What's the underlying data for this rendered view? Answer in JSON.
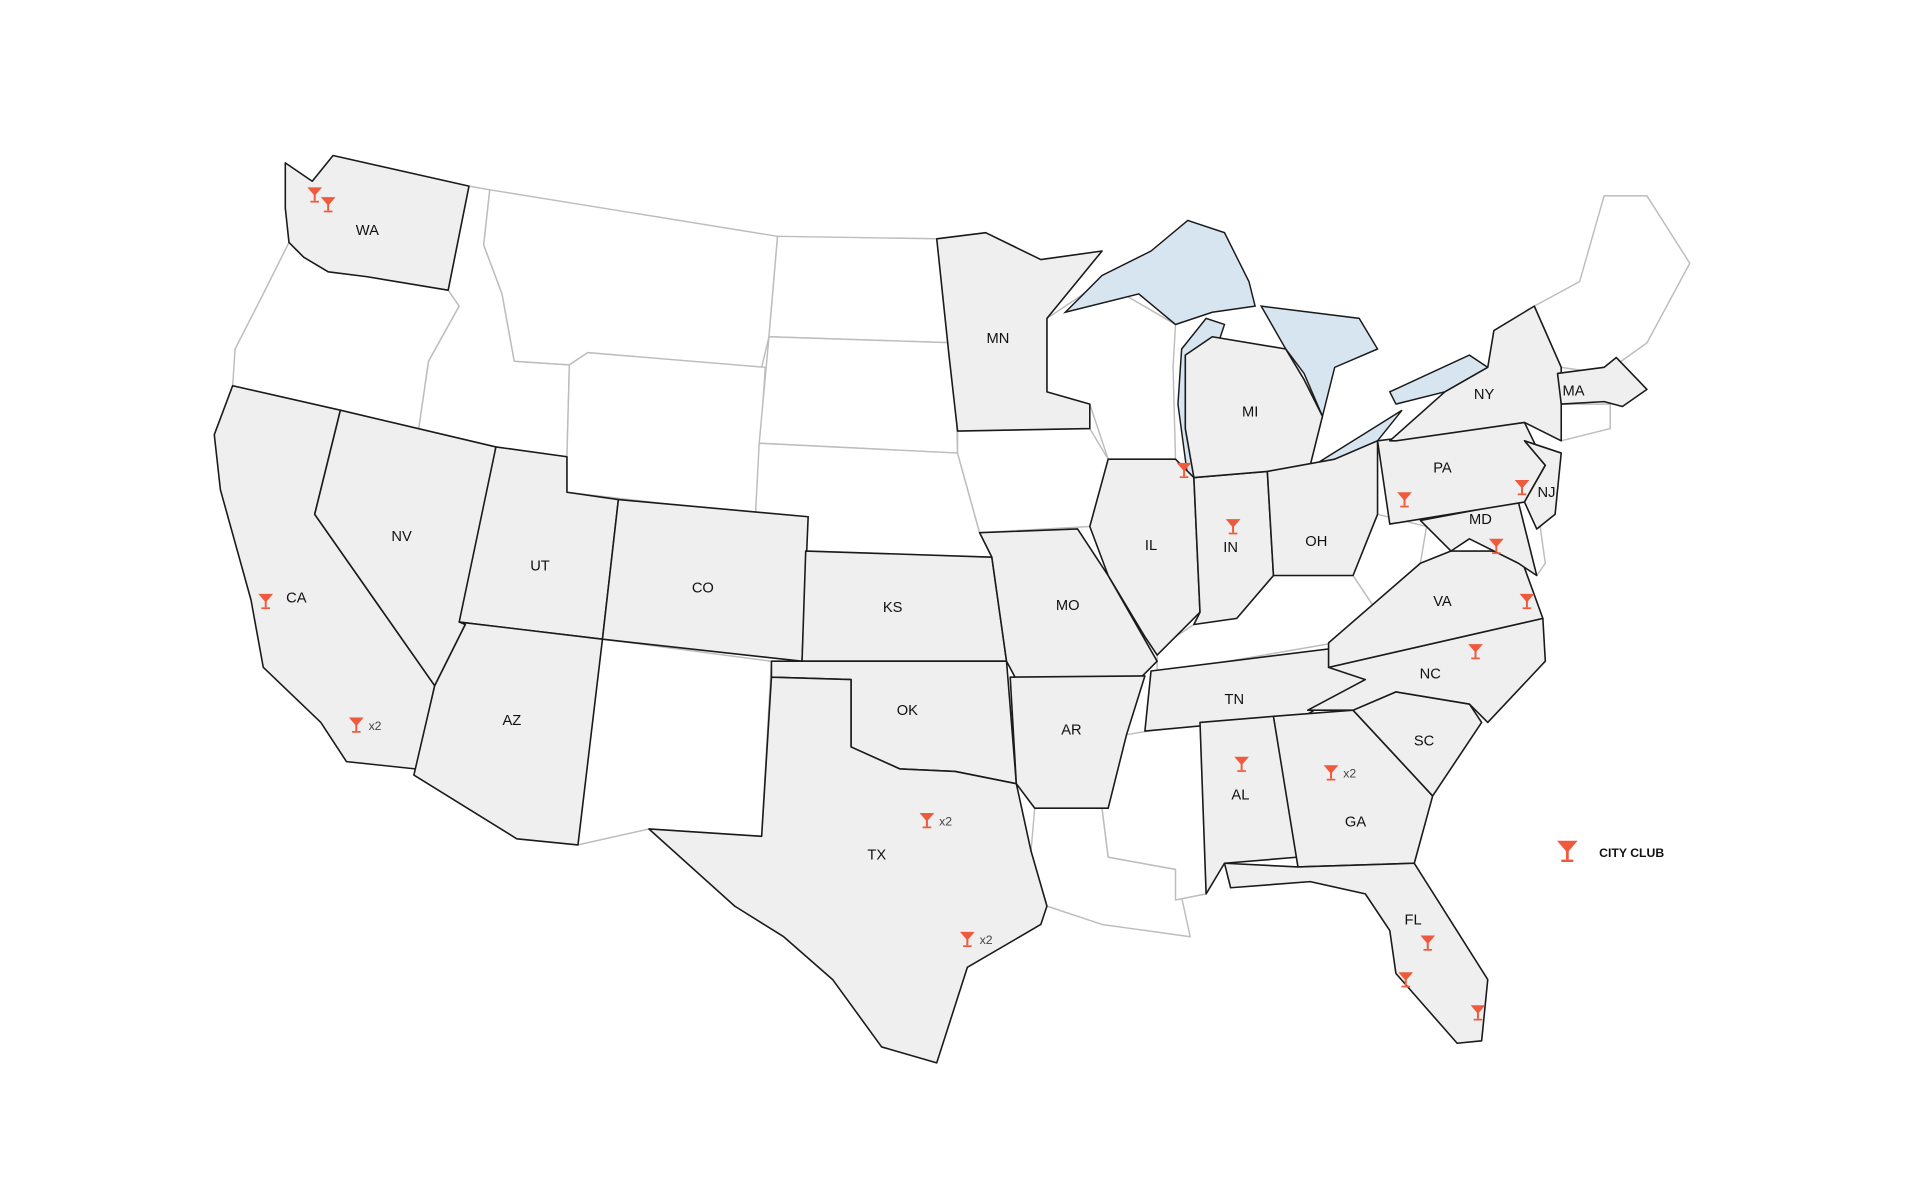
{
  "colors": {
    "marker": "#ef5a3c",
    "selected_state": "#eeefee",
    "lake": "#d6e5ef",
    "border": "#1a1a1a",
    "unselected_border": "#bdbdbd"
  },
  "legend": {
    "icon": "cocktail-glass-icon",
    "label": "CITY CLUB"
  },
  "highlighted_states": [
    {
      "code": "WA",
      "label": "WA"
    },
    {
      "code": "CA",
      "label": "CA"
    },
    {
      "code": "NV",
      "label": "NV"
    },
    {
      "code": "UT",
      "label": "UT"
    },
    {
      "code": "AZ",
      "label": "AZ"
    },
    {
      "code": "CO",
      "label": "CO"
    },
    {
      "code": "KS",
      "label": "KS"
    },
    {
      "code": "OK",
      "label": "OK"
    },
    {
      "code": "TX",
      "label": "TX"
    },
    {
      "code": "MN",
      "label": "MN"
    },
    {
      "code": "MO",
      "label": "MO"
    },
    {
      "code": "AR",
      "label": "AR"
    },
    {
      "code": "IL",
      "label": "IL"
    },
    {
      "code": "IN",
      "label": "IN"
    },
    {
      "code": "MI",
      "label": "MI"
    },
    {
      "code": "OH",
      "label": "OH"
    },
    {
      "code": "TN",
      "label": "TN"
    },
    {
      "code": "AL",
      "label": "AL"
    },
    {
      "code": "GA",
      "label": "GA"
    },
    {
      "code": "FL",
      "label": "FL"
    },
    {
      "code": "SC",
      "label": "SC"
    },
    {
      "code": "NC",
      "label": "NC"
    },
    {
      "code": "VA",
      "label": "VA"
    },
    {
      "code": "MD",
      "label": "MD"
    },
    {
      "code": "PA",
      "label": "PA"
    },
    {
      "code": "NY",
      "label": "NY"
    },
    {
      "code": "NJ",
      "label": "NJ"
    },
    {
      "code": "MA",
      "label": "MA"
    }
  ],
  "markers": [
    {
      "state": "WA",
      "count": ""
    },
    {
      "state": "WA",
      "count": ""
    },
    {
      "state": "CA",
      "count": ""
    },
    {
      "state": "CA",
      "count": "x2"
    },
    {
      "state": "TX",
      "count": "x2"
    },
    {
      "state": "TX",
      "count": "x2"
    },
    {
      "state": "IL",
      "count": ""
    },
    {
      "state": "IN",
      "count": ""
    },
    {
      "state": "PA",
      "count": ""
    },
    {
      "state": "NJ",
      "count": ""
    },
    {
      "state": "MD",
      "count": ""
    },
    {
      "state": "VA",
      "count": ""
    },
    {
      "state": "NC",
      "count": ""
    },
    {
      "state": "AL",
      "count": ""
    },
    {
      "state": "GA",
      "count": "x2"
    },
    {
      "state": "FL",
      "count": ""
    },
    {
      "state": "FL",
      "count": ""
    },
    {
      "state": "FL",
      "count": ""
    }
  ]
}
